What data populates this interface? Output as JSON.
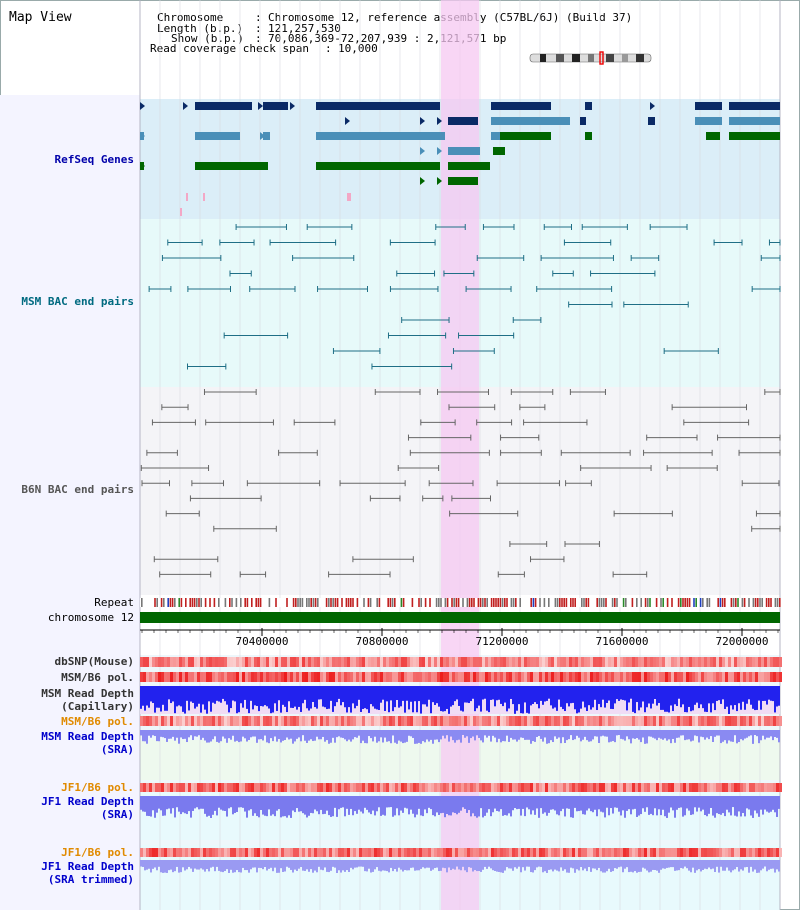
{
  "title": "Map View",
  "header": {
    "chromosome_label": "Chromosome",
    "chromosome_value": "Chromosome 12, reference assembly (C57BL/6J) (Build 37)",
    "length_label": "Length (b.p.)",
    "length_value": "121,257,530",
    "show_label": "Show (b.p.)",
    "show_value": "70,086,369-72,207,939 : 2,121,571 bp",
    "coverage_label": "Read coverage check span",
    "coverage_value": "10,000"
  },
  "tracks": {
    "refseq": {
      "label": "RefSeq Genes",
      "color": "#0000aa"
    },
    "msm_bac": {
      "label": "MSM BAC end pairs",
      "color": "#006a80"
    },
    "b6n_bac": {
      "label": "B6N BAC end pairs",
      "color": "#555555"
    },
    "repeat": {
      "label": "Repeat"
    },
    "chromosome": {
      "label": "chromosome 12"
    },
    "dbsnp": {
      "label": "dbSNP(Mouse)"
    },
    "msm_pol": {
      "label": "MSM/B6 pol."
    },
    "msm_depth_cap": {
      "label1": "MSM Read Depth",
      "label2": "(Capillary)",
      "color": "#0000cc"
    },
    "msm_pol2": {
      "label": "MSM/B6 pol.",
      "color": "#e08a00"
    },
    "msm_depth_sra": {
      "label1": "MSM Read Depth",
      "label2": "(SRA)",
      "color": "#0000cc"
    },
    "jf1_pol": {
      "label": "JF1/B6 pol.",
      "color": "#e08a00"
    },
    "jf1_depth_sra": {
      "label1": "JF1 Read Depth",
      "label2": "(SRA)",
      "color": "#0000cc"
    },
    "jf1_pol2": {
      "label": "JF1/B6 pol.",
      "color": "#e08a00"
    },
    "jf1_depth_trim": {
      "label1": "JF1 Read Depth",
      "label2": "(SRA trimmed)",
      "color": "#0000cc"
    }
  },
  "axis": {
    "ticks": [
      "70400000",
      "70800000",
      "71200000",
      "71600000",
      "72000000"
    ]
  }
}
